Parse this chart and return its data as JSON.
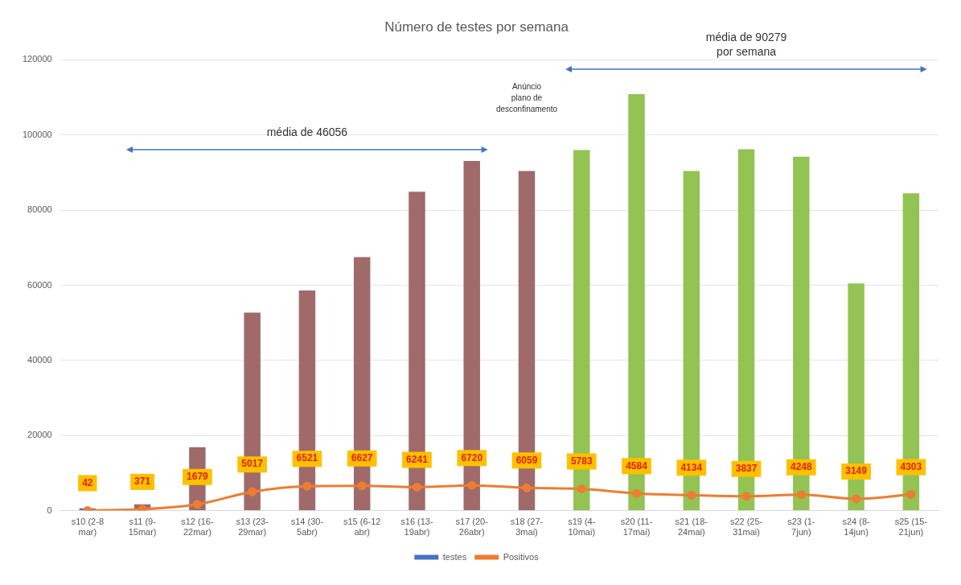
{
  "chart_data": {
    "type": "bar",
    "title": "Número de testes por semana",
    "categories": [
      "s10 (2-8 mar)",
      "s11 (9-15mar)",
      "s12 (16-22mar)",
      "s13 (23-29mar)",
      "s14 (30-5abr)",
      "s15 (6-12 abr)",
      "s16 (13-19abr)",
      "s17 (20-26abr)",
      "s18 (27-3mai)",
      "s19 (4-10mai)",
      "s20 (11-17mai)",
      "s21 (18-24mai)",
      "s22 (25-31mai)",
      "s23 (1-7jun)",
      "s24 (8-14jun)",
      "s25 (15-21jun)"
    ],
    "series": [
      {
        "name": "testes",
        "color": "#4472c4",
        "colors": [
          "#4472c4",
          "#a06a6a",
          "#a06a6a",
          "#a06a6a",
          "#a06a6a",
          "#a06a6a",
          "#a06a6a",
          "#a06a6a",
          "#a06a6a",
          "#92c353",
          "#92c353",
          "#92c353",
          "#92c353",
          "#92c353",
          "#92c353",
          "#92c353"
        ],
        "values": [
          600,
          1700,
          16900,
          52700,
          58600,
          67500,
          84900,
          93100,
          90400,
          96000,
          110900,
          90400,
          96200,
          94200,
          60500,
          84500
        ]
      },
      {
        "name": "Positivos",
        "type": "line",
        "color": "#ed7d31",
        "marker": "circle",
        "values": [
          42,
          371,
          1679,
          5017,
          6521,
          6627,
          6241,
          6720,
          6059,
          5783,
          4584,
          4134,
          3837,
          4248,
          3149,
          4303
        ],
        "value_labels": [
          "42",
          "371",
          "1679",
          "5017",
          "6521",
          "6627",
          "6241",
          "6720",
          "6059",
          "5783",
          "4584",
          "4134",
          "3837",
          "4248",
          "3149",
          "4303"
        ]
      }
    ],
    "ylim": [
      0,
      120000
    ],
    "yticks": [
      0,
      20000,
      40000,
      60000,
      80000,
      100000,
      120000
    ],
    "grid": "y",
    "legend": "bottom",
    "annotations": [
      "média de 46056",
      "média de 90279 por semana",
      "Anúncio plano de desconfinamento"
    ]
  }
}
